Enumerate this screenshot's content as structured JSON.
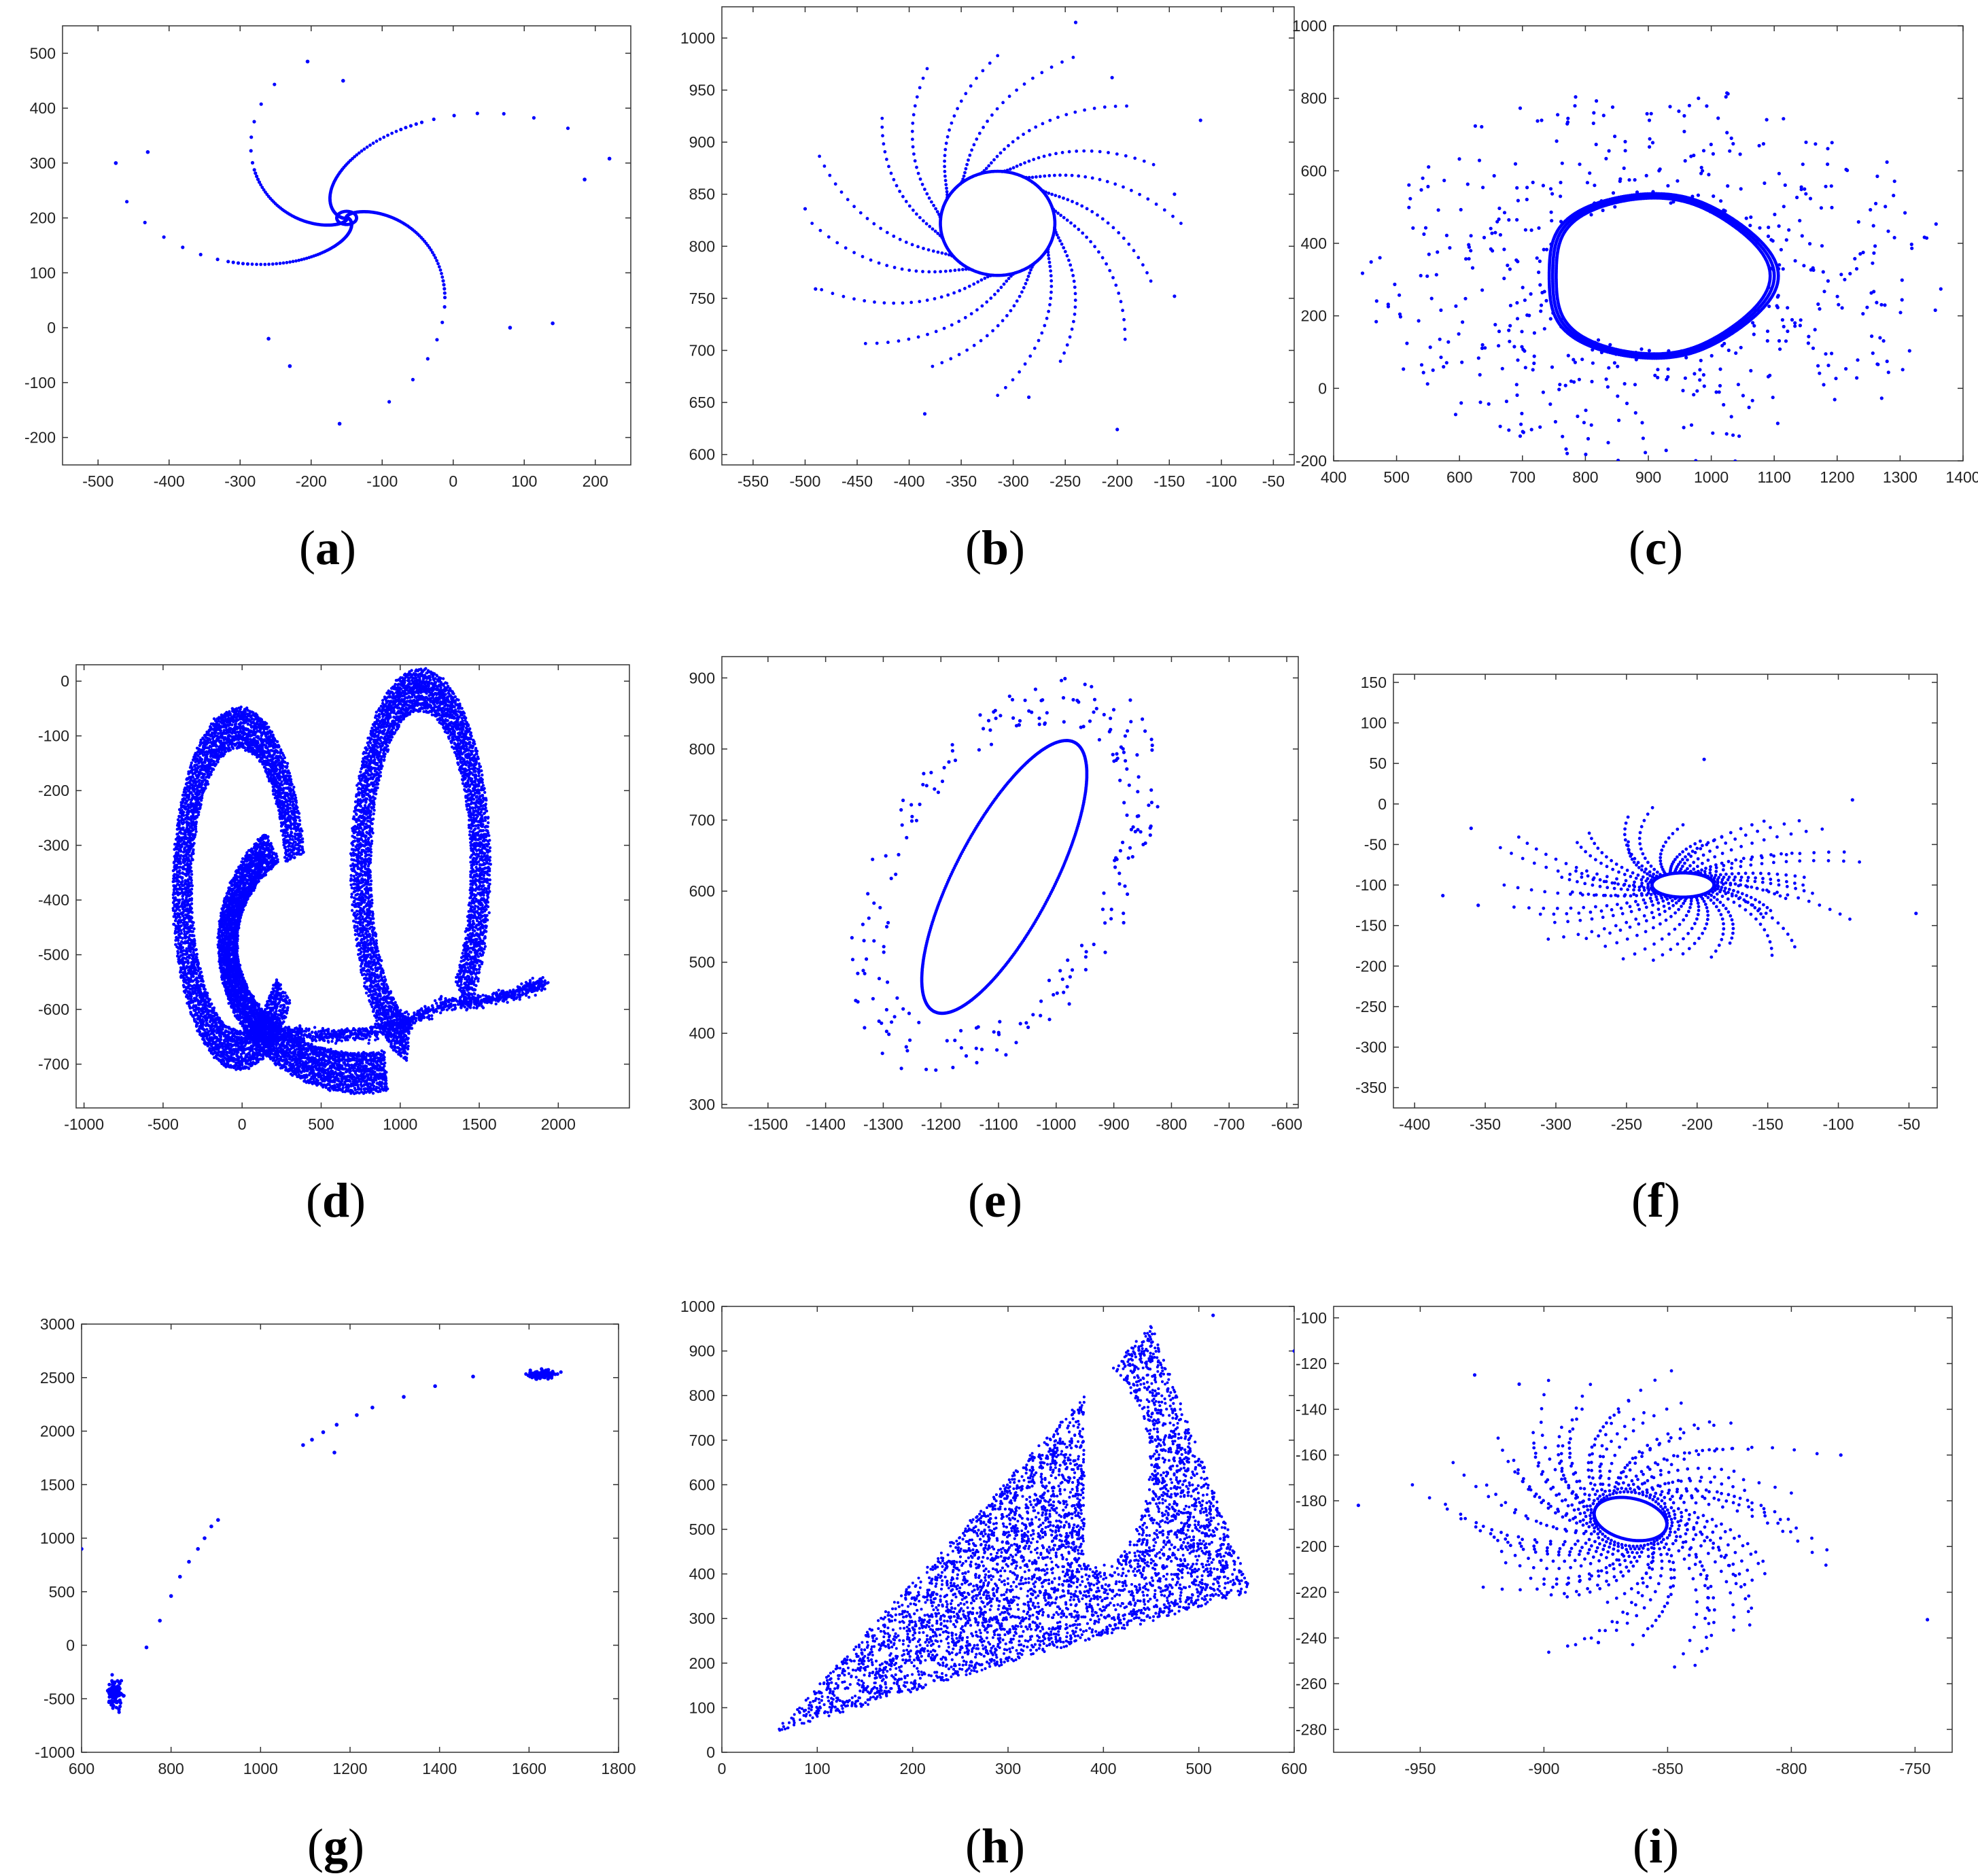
{
  "panels": [
    {
      "label": "a"
    },
    {
      "label": "b"
    },
    {
      "label": "c"
    },
    {
      "label": "d"
    },
    {
      "label": "e"
    },
    {
      "label": "f"
    },
    {
      "label": "g"
    },
    {
      "label": "h"
    },
    {
      "label": "i"
    }
  ],
  "chart_data": [
    {
      "id": "a",
      "type": "scatter",
      "title": "",
      "xlabel": "",
      "ylabel": "",
      "xlim": [
        -550,
        250
      ],
      "ylim": [
        -250,
        550
      ],
      "xticks": [
        -500,
        -400,
        -300,
        -200,
        -100,
        0,
        100,
        200
      ],
      "yticks": [
        -200,
        -100,
        0,
        100,
        200,
        300,
        400,
        500
      ],
      "color": "#0000ff",
      "grid": false,
      "description": "four-armed spiral trajectories converging to a focus near (-150, 200)",
      "center": [
        -150,
        200
      ],
      "outliers": [
        [
          -205,
          485
        ],
        [
          -155,
          450
        ],
        [
          -475,
          300
        ],
        [
          -430,
          320
        ],
        [
          220,
          308
        ],
        [
          185,
          270
        ],
        [
          140,
          8
        ],
        [
          80,
          0
        ],
        [
          -160,
          -175
        ],
        [
          -230,
          -70
        ],
        [
          -260,
          -20
        ]
      ]
    },
    {
      "id": "b",
      "type": "scatter",
      "title": "",
      "xlabel": "",
      "ylabel": "",
      "xlim": [
        -580,
        -30
      ],
      "ylim": [
        590,
        1030
      ],
      "xticks": [
        -550,
        -500,
        -450,
        -400,
        -350,
        -300,
        -250,
        -200,
        -150,
        -100,
        -50
      ],
      "yticks": [
        600,
        650,
        700,
        750,
        800,
        850,
        900,
        950,
        1000
      ],
      "color": "#0000ff",
      "grid": false,
      "description": "trajectories spiralling onto a closed limit cycle centred near (-315, 822)",
      "cycle_center": [
        -315,
        822
      ],
      "cycle_radius": [
        55,
        50
      ],
      "outliers": [
        [
          -240,
          1015
        ],
        [
          -205,
          962
        ],
        [
          -120,
          921
        ],
        [
          -145,
          850
        ],
        [
          -145,
          752
        ],
        [
          -200,
          624
        ],
        [
          -285,
          655
        ],
        [
          -385,
          639
        ],
        [
          -500,
          836
        ],
        [
          -490,
          759
        ]
      ]
    },
    {
      "id": "c",
      "type": "scatter",
      "title": "",
      "xlabel": "",
      "ylabel": "",
      "xlim": [
        400,
        1400
      ],
      "ylim": [
        -200,
        1000
      ],
      "xticks": [
        400,
        500,
        600,
        700,
        800,
        900,
        1000,
        1100,
        1200,
        1300,
        1400
      ],
      "yticks": [
        -200,
        0,
        200,
        400,
        600,
        800,
        1000
      ],
      "color": "#0000ff",
      "grid": false,
      "description": "dense rounded limit cycle centred near (910, 310) surrounded by scattered transient points",
      "cycle_center": [
        910,
        310
      ],
      "cycle_radius": [
        170,
        215
      ]
    },
    {
      "id": "d",
      "type": "scatter",
      "title": "",
      "xlabel": "",
      "ylabel": "",
      "xlim": [
        -1050,
        2450
      ],
      "ylim": [
        -780,
        30
      ],
      "xticks": [
        -1000,
        -500,
        0,
        500,
        1000,
        1500,
        2000
      ],
      "yticks": [
        -700,
        -600,
        -500,
        -400,
        -300,
        -200,
        -100,
        0
      ],
      "color": "#0000ff",
      "grid": false,
      "description": "heart-shaped chaotic attractor with banded lobes"
    },
    {
      "id": "e",
      "type": "scatter",
      "title": "",
      "xlabel": "",
      "ylabel": "",
      "xlim": [
        -1580,
        -580
      ],
      "ylim": [
        295,
        930
      ],
      "xticks": [
        -1500,
        -1400,
        -1300,
        -1200,
        -1100,
        -1000,
        -900,
        -800,
        -700,
        -600
      ],
      "yticks": [
        300,
        400,
        500,
        600,
        700,
        800,
        900
      ],
      "color": "#0000ff",
      "grid": false,
      "description": "tilted elliptical limit cycle from (-1210, 430) to (-970, 810) with surrounding transient points",
      "cycle_center": [
        -1090,
        620
      ]
    },
    {
      "id": "f",
      "type": "scatter",
      "title": "",
      "xlabel": "",
      "ylabel": "",
      "xlim": [
        -415,
        -30
      ],
      "ylim": [
        -375,
        160
      ],
      "xticks": [
        -400,
        -350,
        -300,
        -250,
        -200,
        -150,
        -100,
        -50
      ],
      "yticks": [
        -350,
        -300,
        -250,
        -200,
        -150,
        -100,
        -50,
        0,
        50,
        100,
        150
      ],
      "color": "#0000ff",
      "grid": false,
      "description": "small horizontal elliptical limit cycle near (-210, -100) with radial spiral arms",
      "cycle_center": [
        -210,
        -100
      ],
      "cycle_radius": [
        22,
        15
      ]
    },
    {
      "id": "g",
      "type": "scatter",
      "title": "",
      "xlabel": "",
      "ylabel": "",
      "xlim": [
        600,
        1800
      ],
      "ylim": [
        -1000,
        3000
      ],
      "xticks": [
        600,
        800,
        1000,
        1200,
        1400,
        1600,
        1800
      ],
      "yticks": [
        -1000,
        -500,
        0,
        500,
        1000,
        1500,
        2000,
        2500,
        3000
      ],
      "color": "#0000ff",
      "grid": false,
      "description": "two clusters near (675, -450) and (1630, 2530) joined by an arc of isolated points",
      "clusters": [
        [
          675,
          -450
        ],
        [
          1630,
          2530
        ]
      ],
      "arc": [
        [
          600,
          900
        ],
        [
          745,
          -20
        ],
        [
          775,
          230
        ],
        [
          800,
          460
        ],
        [
          820,
          640
        ],
        [
          840,
          780
        ],
        [
          860,
          900
        ],
        [
          875,
          1000
        ],
        [
          890,
          1110
        ],
        [
          905,
          1170
        ],
        [
          1095,
          1870
        ],
        [
          1115,
          1920
        ],
        [
          1140,
          1990
        ],
        [
          1165,
          1800
        ],
        [
          1170,
          2060
        ],
        [
          1215,
          2150
        ],
        [
          1250,
          2220
        ],
        [
          1320,
          2320
        ],
        [
          1390,
          2420
        ],
        [
          1475,
          2510
        ]
      ]
    },
    {
      "id": "h",
      "type": "scatter",
      "title": "",
      "xlabel": "",
      "ylabel": "",
      "xlim": [
        0,
        600
      ],
      "ylim": [
        0,
        1000
      ],
      "xticks": [
        0,
        100,
        200,
        300,
        400,
        500,
        600
      ],
      "yticks": [
        0,
        100,
        200,
        300,
        400,
        500,
        600,
        700,
        800,
        900,
        1000
      ],
      "color": "#0000ff",
      "grid": false,
      "description": "filled horn-shaped chaotic region with vertices near (55, 45), (450, 960) and (555, 360)",
      "outliers": [
        [
          515,
          980
        ],
        [
          600,
          900
        ],
        [
          478,
          688
        ]
      ]
    },
    {
      "id": "i",
      "type": "scatter",
      "title": "",
      "xlabel": "",
      "ylabel": "",
      "xlim": [
        -985,
        -735
      ],
      "ylim": [
        -290,
        -95
      ],
      "xticks": [
        -950,
        -900,
        -850,
        -800,
        -750
      ],
      "yticks": [
        -280,
        -260,
        -240,
        -220,
        -200,
        -180,
        -160,
        -140,
        -120,
        -100
      ],
      "color": "#0000ff",
      "grid": false,
      "description": "small tilted elliptical limit cycle near (-865, -188) with spiral trajectories",
      "cycle_center": [
        -865,
        -188
      ],
      "cycle_radius": [
        15,
        9
      ]
    }
  ]
}
